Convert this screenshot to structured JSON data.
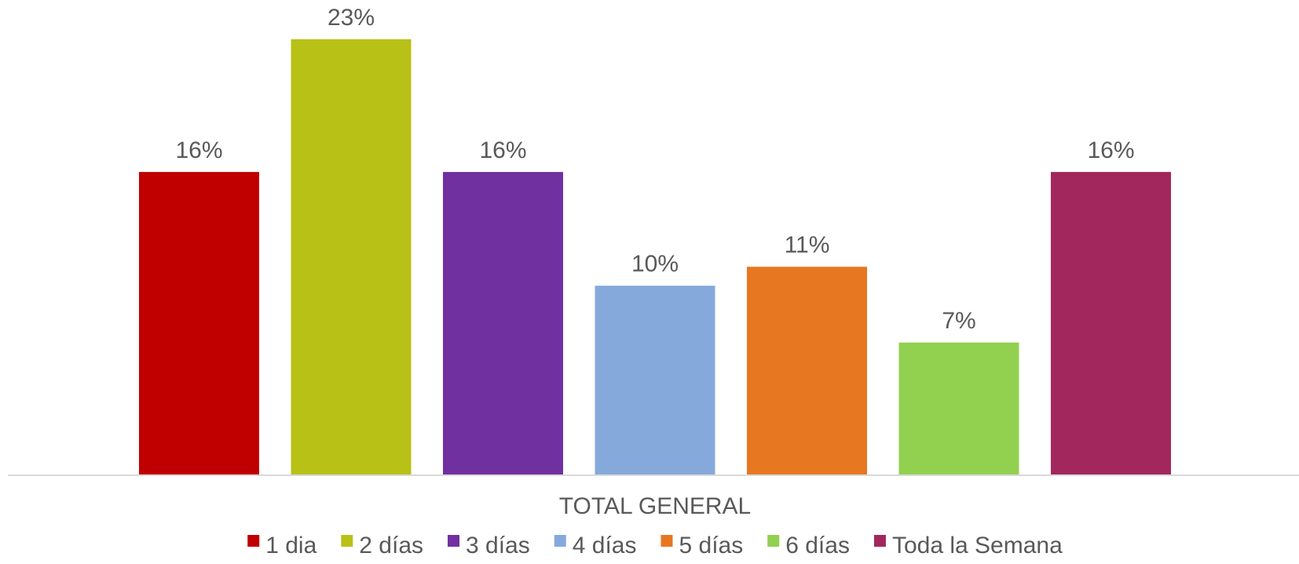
{
  "chart_data": {
    "type": "bar",
    "categories": [
      "TOTAL GENERAL"
    ],
    "series": [
      {
        "name": "1 dia",
        "value": 16,
        "label": "16%",
        "color": "#C00000"
      },
      {
        "name": "2 días",
        "value": 23,
        "label": "23%",
        "color": "#B8C116"
      },
      {
        "name": "3 días",
        "value": 16,
        "label": "16%",
        "color": "#7030A0"
      },
      {
        "name": "4 días",
        "value": 10,
        "label": "10%",
        "color": "#86A9DC"
      },
      {
        "name": "5 días",
        "value": 11,
        "label": "11%",
        "color": "#E87722"
      },
      {
        "name": "6 días",
        "value": 7,
        "label": "7%",
        "color": "#92D050"
      },
      {
        "name": "Toda la Semana",
        "value": 16,
        "label": "16%",
        "color": "#A2275C"
      }
    ],
    "xlabel": "TOTAL GENERAL",
    "ylim": [
      0,
      23
    ],
    "value_unit": "%",
    "legend_position": "bottom",
    "grid": false
  }
}
